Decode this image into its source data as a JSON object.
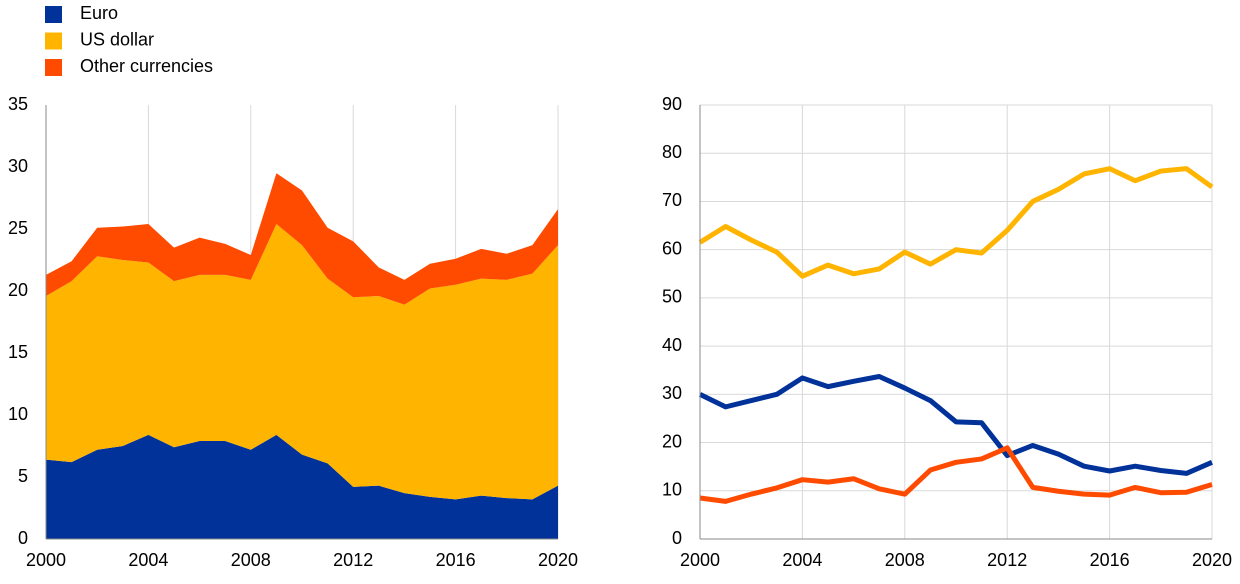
{
  "chart_data": [
    {
      "type": "stacked-area",
      "x": [
        2000,
        2001,
        2002,
        2003,
        2004,
        2005,
        2006,
        2007,
        2008,
        2009,
        2010,
        2011,
        2012,
        2013,
        2014,
        2015,
        2016,
        2017,
        2018,
        2019,
        2020
      ],
      "series": [
        {
          "name": "Euro",
          "color": "#003299",
          "values": [
            6.4,
            6.2,
            7.2,
            7.5,
            8.4,
            7.4,
            7.9,
            7.9,
            7.2,
            8.4,
            6.8,
            6.1,
            4.2,
            4.3,
            3.7,
            3.4,
            3.2,
            3.5,
            3.3,
            3.2,
            4.3
          ]
        },
        {
          "name": "US dollar",
          "color": "#ffb400",
          "values": [
            13.2,
            14.6,
            15.6,
            15.0,
            13.9,
            13.4,
            13.4,
            13.4,
            13.7,
            17.0,
            16.9,
            14.9,
            15.3,
            15.3,
            15.2,
            16.8,
            17.3,
            17.5,
            17.6,
            18.2,
            19.4
          ]
        },
        {
          "name": "Other currencies",
          "color": "#ff4b00",
          "values": [
            1.7,
            1.6,
            2.3,
            2.7,
            3.1,
            2.7,
            3.0,
            2.5,
            2.0,
            4.1,
            4.4,
            4.1,
            4.5,
            2.3,
            2.0,
            2.0,
            2.1,
            2.4,
            2.1,
            2.3,
            2.9
          ]
        }
      ],
      "xlim": [
        2000,
        2020
      ],
      "xticks": [
        2000,
        2004,
        2008,
        2012,
        2016,
        2020
      ],
      "ylim": [
        0,
        35
      ],
      "yticks": [
        0,
        5,
        10,
        15,
        20,
        25,
        30,
        35
      ],
      "grid": "x"
    },
    {
      "type": "line",
      "x": [
        2000,
        2001,
        2002,
        2003,
        2004,
        2005,
        2006,
        2007,
        2008,
        2009,
        2010,
        2011,
        2012,
        2013,
        2014,
        2015,
        2016,
        2017,
        2018,
        2019,
        2020
      ],
      "series": [
        {
          "color": "#003299",
          "values": [
            30.0,
            27.4,
            28.7,
            30.0,
            33.4,
            31.6,
            32.7,
            33.7,
            31.3,
            28.7,
            24.3,
            24.1,
            17.3,
            19.4,
            17.6,
            15.1,
            14.1,
            15.1,
            14.2,
            13.6,
            15.9
          ]
        },
        {
          "color": "#ffb400",
          "values": [
            61.5,
            64.8,
            62.0,
            59.5,
            54.5,
            56.8,
            55.0,
            56.0,
            59.5,
            57.0,
            60.0,
            59.3,
            64.0,
            70.0,
            72.5,
            75.7,
            76.8,
            74.3,
            76.3,
            76.8,
            73.0
          ]
        },
        {
          "color": "#ff4b00",
          "values": [
            8.5,
            7.8,
            9.3,
            10.6,
            12.3,
            11.8,
            12.5,
            10.4,
            9.3,
            14.3,
            15.9,
            16.6,
            18.9,
            10.7,
            9.9,
            9.3,
            9.1,
            10.7,
            9.6,
            9.7,
            11.3
          ]
        }
      ],
      "xlim": [
        2000,
        2020
      ],
      "xticks": [
        2000,
        2004,
        2008,
        2012,
        2016,
        2020
      ],
      "ylim": [
        0,
        90
      ],
      "yticks": [
        0,
        10,
        20,
        30,
        40,
        50,
        60,
        70,
        80,
        90
      ],
      "grid": "both"
    }
  ]
}
